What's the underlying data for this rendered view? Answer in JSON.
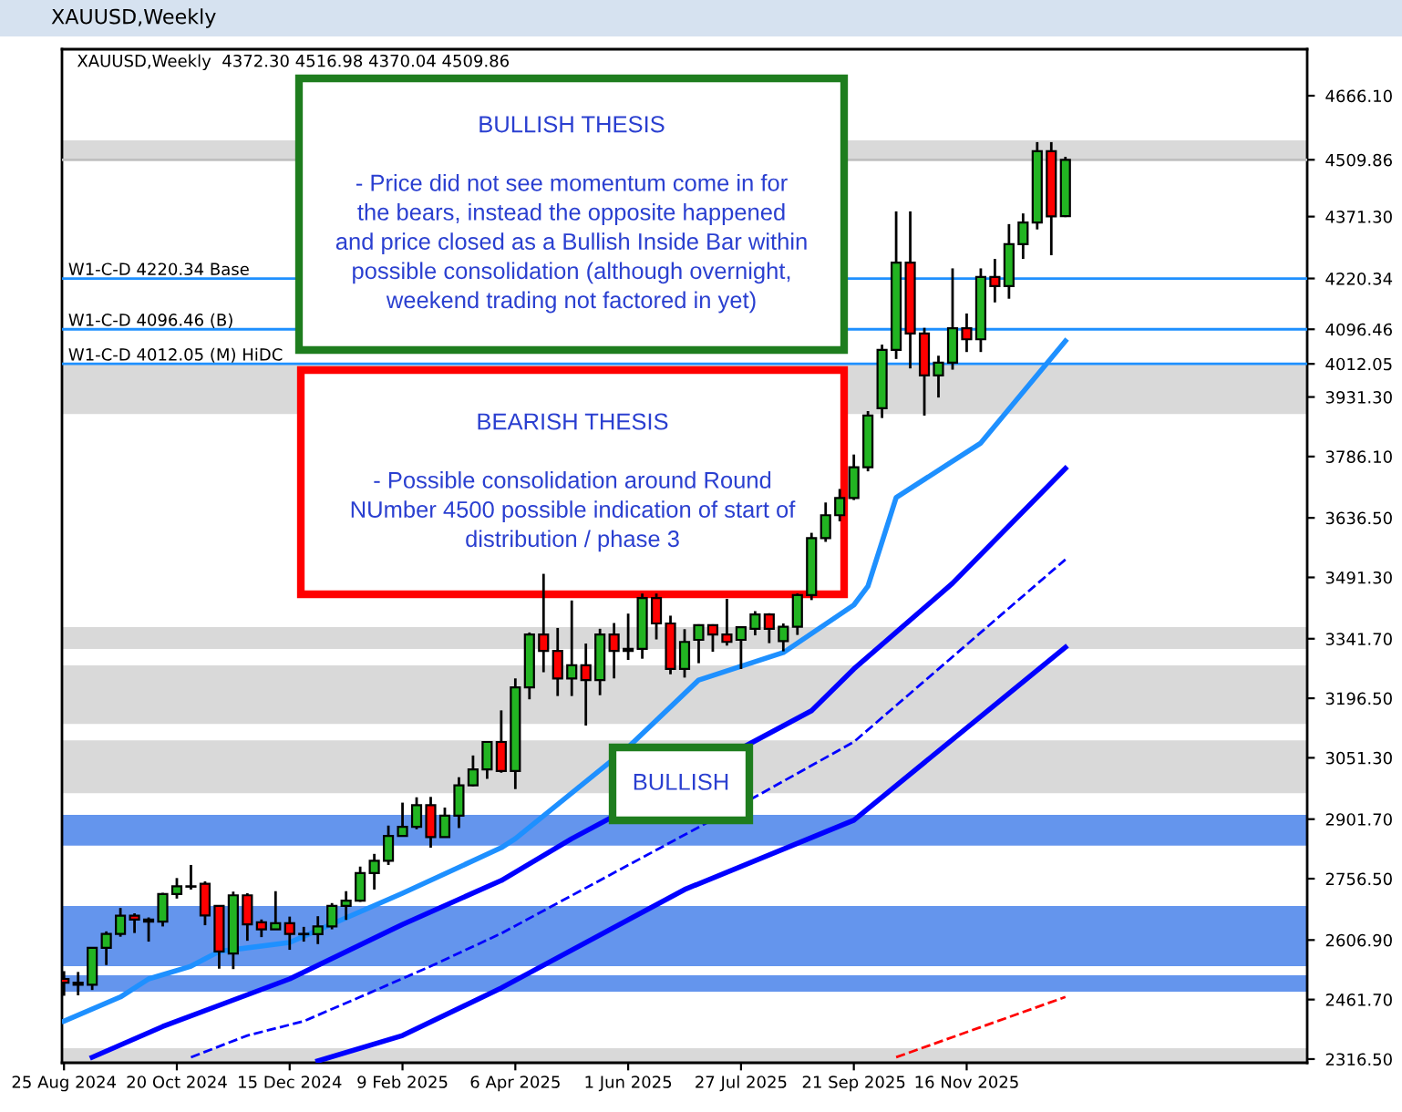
{
  "chart_data": {
    "type": "candlestick",
    "title": "XAUUSD,Weekly",
    "subtitle": "XAUUSD,Weekly  4372.30 4516.98 4370.04 4509.86",
    "x": [
      "2024-08-25",
      "2024-09-01",
      "2024-09-08",
      "2024-09-15",
      "2024-09-22",
      "2024-09-29",
      "2024-10-06",
      "2024-10-13",
      "2024-10-20",
      "2024-10-27",
      "2024-11-03",
      "2024-11-10",
      "2024-11-17",
      "2024-11-24",
      "2024-12-01",
      "2024-12-08",
      "2024-12-15",
      "2024-12-22",
      "2024-12-29",
      "2025-01-05",
      "2025-01-12",
      "2025-01-19",
      "2025-01-26",
      "2025-02-02",
      "2025-02-09",
      "2025-02-16",
      "2025-02-23",
      "2025-03-02",
      "2025-03-09",
      "2025-03-16",
      "2025-03-23",
      "2025-03-30",
      "2025-04-06",
      "2025-04-13",
      "2025-04-20",
      "2025-04-27",
      "2025-05-04",
      "2025-05-11",
      "2025-05-18",
      "2025-05-25",
      "2025-06-01",
      "2025-06-08",
      "2025-06-15",
      "2025-06-22",
      "2025-06-29",
      "2025-07-06",
      "2025-07-13",
      "2025-07-20",
      "2025-07-27",
      "2025-08-03",
      "2025-08-10",
      "2025-08-17",
      "2025-08-24",
      "2025-08-31",
      "2025-09-07",
      "2025-09-14",
      "2025-09-21",
      "2025-09-28",
      "2025-10-05",
      "2025-10-12",
      "2025-10-19",
      "2025-10-26",
      "2025-11-02",
      "2025-11-09",
      "2025-11-16",
      "2025-11-23",
      "2025-11-30",
      "2025-12-07",
      "2025-12-14",
      "2025-12-21",
      "2025-12-28",
      "2026-01-04"
    ],
    "ohlc": [
      [
        2512,
        2531,
        2471,
        2503
      ],
      [
        2503,
        2529,
        2472,
        2498
      ],
      [
        2498,
        2588,
        2485,
        2588
      ],
      [
        2588,
        2628,
        2546,
        2622
      ],
      [
        2622,
        2685,
        2615,
        2666
      ],
      [
        2666,
        2672,
        2624,
        2657
      ],
      [
        2657,
        2662,
        2603,
        2652
      ],
      [
        2652,
        2722,
        2640,
        2719
      ],
      [
        2719,
        2758,
        2708,
        2738
      ],
      [
        2738,
        2790,
        2730,
        2737
      ],
      [
        2744,
        2750,
        2643,
        2667
      ],
      [
        2690,
        2690,
        2537,
        2579
      ],
      [
        2574,
        2725,
        2536,
        2716
      ],
      [
        2716,
        2721,
        2605,
        2645
      ],
      [
        2650,
        2657,
        2614,
        2633
      ],
      [
        2633,
        2726,
        2632,
        2648
      ],
      [
        2648,
        2664,
        2583,
        2622
      ],
      [
        2622,
        2639,
        2603,
        2621
      ],
      [
        2621,
        2665,
        2597,
        2640
      ],
      [
        2640,
        2697,
        2633,
        2690
      ],
      [
        2690,
        2726,
        2656,
        2703
      ],
      [
        2703,
        2786,
        2700,
        2770
      ],
      [
        2770,
        2817,
        2730,
        2800
      ],
      [
        2800,
        2886,
        2790,
        2861
      ],
      [
        2861,
        2942,
        2860,
        2883
      ],
      [
        2883,
        2955,
        2877,
        2936
      ],
      [
        2936,
        2956,
        2832,
        2858
      ],
      [
        2858,
        2930,
        2857,
        2910
      ],
      [
        2910,
        3004,
        2880,
        2984
      ],
      [
        2984,
        3057,
        2982,
        3023
      ],
      [
        3023,
        3092,
        3000,
        3090
      ],
      [
        3090,
        3167,
        3015,
        3019
      ],
      [
        3019,
        3245,
        2975,
        3223
      ],
      [
        3223,
        3357,
        3194,
        3352
      ],
      [
        3352,
        3500,
        3260,
        3312
      ],
      [
        3312,
        3368,
        3202,
        3245
      ],
      [
        3245,
        3435,
        3202,
        3277
      ],
      [
        3277,
        3330,
        3130,
        3241
      ],
      [
        3241,
        3366,
        3204,
        3352
      ],
      [
        3352,
        3380,
        3245,
        3312
      ],
      [
        3312,
        3403,
        3290,
        3317
      ],
      [
        3317,
        3452,
        3293,
        3441
      ],
      [
        3441,
        3452,
        3340,
        3379
      ],
      [
        3379,
        3398,
        3255,
        3268
      ],
      [
        3268,
        3365,
        3247,
        3334
      ],
      [
        3339,
        3377,
        3282,
        3375
      ],
      [
        3375,
        3377,
        3310,
        3352
      ],
      [
        3352,
        3439,
        3325,
        3334
      ],
      [
        3339,
        3372,
        3268,
        3370
      ],
      [
        3366,
        3409,
        3350,
        3401
      ],
      [
        3401,
        3404,
        3331,
        3366
      ],
      [
        3336,
        3379,
        3311,
        3371
      ],
      [
        3371,
        3452,
        3351,
        3448
      ],
      [
        3448,
        3600,
        3436,
        3587
      ],
      [
        3587,
        3674,
        3578,
        3643
      ],
      [
        3643,
        3707,
        3628,
        3685
      ],
      [
        3685,
        3791,
        3680,
        3760
      ],
      [
        3760,
        3897,
        3750,
        3886
      ],
      [
        3904,
        4059,
        3880,
        4046
      ],
      [
        4046,
        4384,
        4024,
        4259
      ],
      [
        4259,
        4384,
        4001,
        4086
      ],
      [
        4086,
        4100,
        3886,
        3984
      ],
      [
        3984,
        4032,
        3930,
        4015
      ],
      [
        4015,
        4245,
        3998,
        4099
      ],
      [
        4099,
        4135,
        4041,
        4072
      ],
      [
        4072,
        4245,
        4041,
        4224
      ],
      [
        4224,
        4268,
        4162,
        4202
      ],
      [
        4202,
        4353,
        4171,
        4304
      ],
      [
        4304,
        4379,
        4268,
        4357
      ],
      [
        4357,
        4553,
        4340,
        4531
      ],
      [
        4531,
        4553,
        4277,
        4372
      ],
      [
        4372.3,
        4516.98,
        4370.04,
        4509.86
      ]
    ],
    "colors": [
      "#ff0000",
      "#ff0000",
      "#22b422",
      "#22b422",
      "#22b422",
      "#ff0000",
      "#ff0000",
      "#22b422",
      "#22b422",
      "#ff0000",
      "#ff0000",
      "#ff0000",
      "#22b422",
      "#ff0000",
      "#ff0000",
      "#22b422",
      "#ff0000",
      "#ff0000",
      "#22b422",
      "#22b422",
      "#22b422",
      "#22b422",
      "#22b422",
      "#22b422",
      "#22b422",
      "#22b422",
      "#ff0000",
      "#22b422",
      "#22b422",
      "#22b422",
      "#22b422",
      "#ff0000",
      "#22b422",
      "#22b422",
      "#ff0000",
      "#ff0000",
      "#22b422",
      "#ff0000",
      "#22b422",
      "#ff0000",
      "#22b422",
      "#22b422",
      "#ff0000",
      "#ff0000",
      "#22b422",
      "#22b422",
      "#ff0000",
      "#ff0000",
      "#22b422",
      "#22b422",
      "#ff0000",
      "#22b422",
      "#22b422",
      "#22b422",
      "#22b422",
      "#22b422",
      "#22b422",
      "#22b422",
      "#22b422",
      "#22b422",
      "#ff0000",
      "#ff0000",
      "#22b422",
      "#22b422",
      "#ff0000",
      "#22b422",
      "#ff0000",
      "#22b422",
      "#22b422",
      "#22b422",
      "#ff0000",
      "#22b422"
    ],
    "series": [
      {
        "type": "line",
        "color": "#1e90ff",
        "line_style": "solid",
        "x": [
          "2024-08-25",
          "2024-09-22",
          "2024-10-06",
          "2024-10-27",
          "2024-11-10",
          "2024-12-15",
          "2025-02-09",
          "2025-03-30",
          "2025-04-06",
          "2025-06-01",
          "2025-07-06",
          "2025-08-17",
          "2025-09-21",
          "2025-09-28",
          "2025-10-12",
          "2025-11-23",
          "2026-01-04"
        ],
        "values": [
          2409,
          2468,
          2512,
          2543,
          2579,
          2601,
          2721,
          2832,
          2854,
          3077,
          3241,
          3308,
          3424,
          3470,
          3686,
          3819,
          4068
        ]
      },
      {
        "type": "line",
        "color": "#0000ff",
        "line_style": "solid",
        "x": [
          "2024-09-08",
          "2024-10-13",
          "2024-12-15",
          "2025-02-09",
          "2025-03-30",
          "2025-05-04",
          "2025-08-31",
          "2025-09-21",
          "2025-11-09",
          "2026-01-04"
        ],
        "values": [
          2321,
          2396,
          2512,
          2645,
          2752,
          2854,
          3166,
          3268,
          3477,
          3757
        ]
      },
      {
        "type": "line",
        "color": "#0000ff",
        "line_style": "dashed",
        "x": [
          "2024-10-27",
          "2024-11-24",
          "2024-12-22",
          "2025-01-19",
          "2025-02-23",
          "2025-03-30",
          "2025-08-03",
          "2025-09-21",
          "2026-01-04"
        ],
        "values": [
          2321,
          2374,
          2409,
          2468,
          2543,
          2623,
          2956,
          3090,
          3535
        ]
      },
      {
        "type": "line",
        "color": "#0000ff",
        "line_style": "solid",
        "x": [
          "2024-12-29",
          "2025-02-09",
          "2025-03-30",
          "2025-06-29",
          "2025-09-21",
          "2026-01-04"
        ],
        "values": [
          2312,
          2374,
          2490,
          2730,
          2899,
          3321
        ]
      },
      {
        "type": "line",
        "color": "#ff0000",
        "line_style": "dashed",
        "x": [
          "2025-10-12",
          "2026-01-04"
        ],
        "values": [
          2321,
          2468
        ]
      }
    ],
    "ref_lines": [
      {
        "axis": "y",
        "value": 4509.86,
        "label": null,
        "color": "#c0c0c0"
      },
      {
        "axis": "y",
        "value": 4220.34,
        "label": "W1-C-D 4220.34 Base",
        "color": "#1e90ff"
      },
      {
        "axis": "y",
        "value": 4096.46,
        "label": "W1-C-D 4096.46 (B)",
        "color": "#1e90ff"
      },
      {
        "axis": "y",
        "value": 4012.05,
        "label": "W1-C-D 4012.05 (M) HiDC",
        "color": "#1e90ff"
      }
    ],
    "bands": [
      {
        "axis": "y",
        "from": 4510,
        "to": 4557,
        "color": "#d9d9d9"
      },
      {
        "axis": "y",
        "from": 3890,
        "to": 4012.05,
        "color": "#d9d9d9"
      },
      {
        "axis": "y",
        "from": 3317,
        "to": 3370,
        "color": "#d9d9d9"
      },
      {
        "axis": "y",
        "from": 3134,
        "to": 3277,
        "color": "#d9d9d9"
      },
      {
        "axis": "y",
        "from": 2965,
        "to": 3094,
        "color": "#d9d9d9"
      },
      {
        "axis": "y",
        "from": 2837,
        "to": 2912,
        "color": "#6495ed"
      },
      {
        "axis": "y",
        "from": 2543,
        "to": 2690,
        "color": "#6495ed"
      },
      {
        "axis": "y",
        "from": 2481,
        "to": 2521,
        "color": "#6495ed"
      },
      {
        "axis": "y",
        "from": 2308,
        "to": 2343,
        "color": "#d9d9d9"
      }
    ],
    "annotations": [
      "BULLISH THESIS\n\n- Price did not see momentum come in for\nthe bears, instead the opposite happened\nand price closed as a Bullish Inside Bar within\npossible consolidation (although overnight,\nweekend trading not factored in yet)",
      "BEARISH THESIS\n\n- Possible consolidation around Round\nNUmber 4500 possible indication of start of\ndistribution / phase 3",
      "BULLISH"
    ],
    "xlim": [
      "2024-08-24",
      "2026-05-04"
    ],
    "xticks": [
      {
        "value": "2024-08-25",
        "label": "25 Aug 2024"
      },
      {
        "value": "2024-10-20",
        "label": "20 Oct 2024"
      },
      {
        "value": "2024-12-15",
        "label": "15 Dec 2024"
      },
      {
        "value": "2025-02-09",
        "label": "9 Feb 2025"
      },
      {
        "value": "2025-04-06",
        "label": "6 Apr 2025"
      },
      {
        "value": "2025-06-01",
        "label": "1 Jun 2025"
      },
      {
        "value": "2025-07-27",
        "label": "27 Jul 2025"
      },
      {
        "value": "2025-09-21",
        "label": "21 Sep 2025"
      },
      {
        "value": "2025-11-16",
        "label": "16 Nov 2025"
      }
    ],
    "ylim": [
      2307.5,
      4779.5
    ],
    "yticks": [
      {
        "value": 4666.1,
        "label": "4666.10"
      },
      {
        "value": 4509.86,
        "label": "4509.86"
      },
      {
        "value": 4371.3,
        "label": "4371.30"
      },
      {
        "value": 4220.34,
        "label": "4220.34"
      },
      {
        "value": 4096.46,
        "label": "4096.46"
      },
      {
        "value": 4012.05,
        "label": "4012.05"
      },
      {
        "value": 3931.3,
        "label": "3931.30"
      },
      {
        "value": 3786.1,
        "label": "3786.10"
      },
      {
        "value": 3636.5,
        "label": "3636.50"
      },
      {
        "value": 3491.3,
        "label": "3491.30"
      },
      {
        "value": 3341.7,
        "label": "3341.70"
      },
      {
        "value": 3196.5,
        "label": "3196.50"
      },
      {
        "value": 3051.3,
        "label": "3051.30"
      },
      {
        "value": 2901.7,
        "label": "2901.70"
      },
      {
        "value": 2756.5,
        "label": "2756.50"
      },
      {
        "value": 2606.9,
        "label": "2606.90"
      },
      {
        "value": 2461.7,
        "label": "2461.70"
      },
      {
        "value": 2316.5,
        "label": "2316.50"
      }
    ],
    "grid": false,
    "legend": false
  }
}
